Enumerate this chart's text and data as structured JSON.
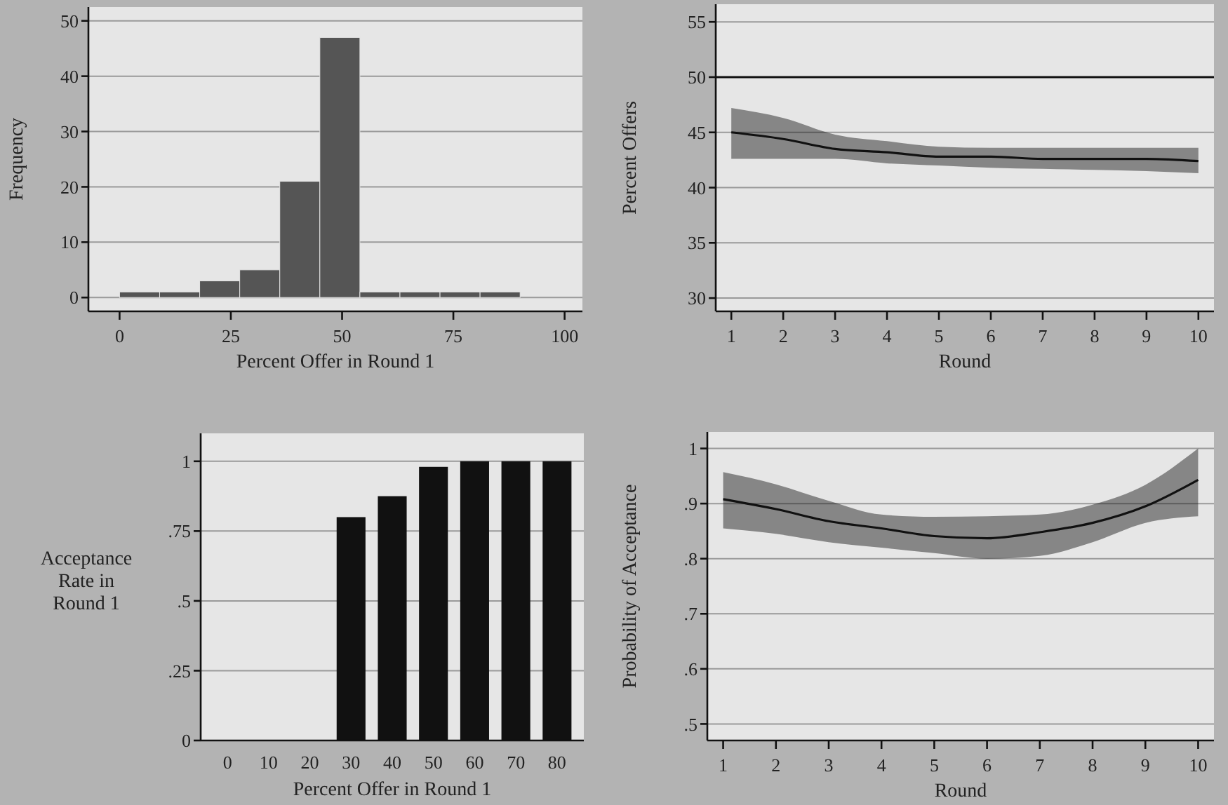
{
  "chart_data": [
    {
      "type": "histogram",
      "xlabel": "Percent Offer in Round 1",
      "ylabel": "Frequency",
      "color": "#555555",
      "bins": [
        0,
        9,
        18,
        27,
        36,
        45,
        54,
        63,
        72,
        81,
        90
      ],
      "values": [
        1,
        1,
        3,
        5,
        21,
        47,
        1,
        1,
        1,
        1
      ],
      "xlim": [
        -7,
        104
      ],
      "ylim": [
        -2.5,
        52.5
      ],
      "xticks": [
        0,
        25,
        50,
        75,
        100
      ],
      "yticks": [
        0,
        10,
        20,
        30,
        40,
        50
      ],
      "grid": "y"
    },
    {
      "type": "line",
      "xlabel": "Round",
      "ylabel": "Percent Offers",
      "x": [
        1,
        2,
        3,
        4,
        5,
        6,
        7,
        8,
        9,
        10
      ],
      "series": [
        {
          "color": "#111111",
          "values": [
            45,
            44.4,
            43.5,
            43.2,
            42.8,
            42.8,
            42.6,
            42.6,
            42.6,
            42.4
          ],
          "lower": [
            42.6,
            42.6,
            42.6,
            42.2,
            42,
            41.8,
            41.7,
            41.6,
            41.5,
            41.3
          ],
          "upper": [
            47.2,
            46.3,
            44.8,
            44.2,
            43.7,
            43.6,
            43.6,
            43.6,
            43.6,
            43.6
          ]
        }
      ],
      "xlim": [
        0.7,
        10.3
      ],
      "ylim": [
        28.8,
        56.6
      ],
      "xticks": [
        1,
        2,
        3,
        4,
        5,
        6,
        7,
        8,
        9,
        10
      ],
      "yticks": [
        30,
        35,
        40,
        45,
        50,
        55
      ],
      "grid": "y",
      "ref_lines": [
        {
          "axis": "y",
          "value": 50,
          "color": "#111111"
        }
      ]
    },
    {
      "type": "bar",
      "xlabel": "Percent Offer in Round 1",
      "ylabel": "Acceptance\nRate in\nRound 1",
      "color": "#111111",
      "categories": [
        "0",
        "10",
        "20",
        "30",
        "40",
        "50",
        "60",
        "70",
        "80"
      ],
      "values": [
        0,
        0,
        0,
        0.8,
        0.875,
        0.98,
        1,
        1,
        1
      ],
      "ylim": [
        0,
        1.1
      ],
      "yticks": [
        0,
        {
          "value": 0.25,
          "label": ".25"
        },
        {
          "value": 0.5,
          "label": ".5"
        },
        {
          "value": 0.75,
          "label": ".75"
        },
        1
      ],
      "grid": "y"
    },
    {
      "type": "line",
      "xlabel": "Round",
      "ylabel": "Probability of Acceptance",
      "x": [
        1,
        2,
        3,
        4,
        5,
        6,
        7,
        8,
        9,
        10
      ],
      "series": [
        {
          "color": "#111111",
          "values": [
            0.908,
            0.89,
            0.868,
            0.855,
            0.841,
            0.837,
            0.848,
            0.865,
            0.895,
            0.943
          ],
          "lower": [
            0.855,
            0.845,
            0.83,
            0.82,
            0.81,
            0.8,
            0.805,
            0.83,
            0.865,
            0.877
          ],
          "upper": [
            0.957,
            0.935,
            0.905,
            0.88,
            0.876,
            0.877,
            0.88,
            0.898,
            0.934,
            1
          ]
        }
      ],
      "xlim": [
        0.7,
        10.3
      ],
      "ylim": [
        0.47,
        1.03
      ],
      "xticks": [
        1,
        2,
        3,
        4,
        5,
        6,
        7,
        8,
        9,
        10
      ],
      "yticks": [
        {
          "value": 0.5,
          "label": ".5"
        },
        {
          "value": 0.6,
          "label": ".6"
        },
        {
          "value": 0.7,
          "label": ".7"
        },
        {
          "value": 0.8,
          "label": ".8"
        },
        {
          "value": 0.9,
          "label": ".9"
        },
        1
      ],
      "grid": "y"
    }
  ]
}
